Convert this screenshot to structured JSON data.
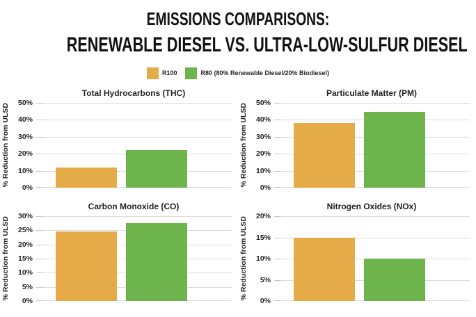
{
  "title": {
    "line1": "EMISSIONS COMPARISONS:",
    "line2": "RENEWABLE DIESEL VS. ULTRA-LOW-SULFUR DIESEL"
  },
  "legend": {
    "position": "top-center",
    "items": [
      {
        "label": "R100",
        "color": "#E6AB49"
      },
      {
        "label": "R80 (80% Renewable Diesel/20% Biodiesel)",
        "color": "#6CB44B"
      }
    ]
  },
  "colors": {
    "r100_orange": "#E6AB49",
    "r80_green": "#6CB44B",
    "gridline": "#DCDCDC",
    "text": "#231F20"
  },
  "chart_data": [
    {
      "type": "bar",
      "title": "Total Hydrocarbons (THC)",
      "xlabel": "",
      "ylabel": "% Reduction from ULSD",
      "ylim": [
        0,
        50
      ],
      "ytick_step": 10,
      "yticks": [
        "50%",
        "40%",
        "30%",
        "20%",
        "10%",
        "0%"
      ],
      "grid": true,
      "series": [
        {
          "name": "R100",
          "value": 12,
          "color": "#E6AB49"
        },
        {
          "name": "R80",
          "value": 22,
          "color": "#6CB44B"
        }
      ]
    },
    {
      "type": "bar",
      "title": "Particulate Matter (PM)",
      "xlabel": "",
      "ylabel": "% Reduction from ULSD",
      "ylim": [
        0,
        50
      ],
      "ytick_step": 10,
      "yticks": [
        "50%",
        "40%",
        "30%",
        "20%",
        "10%",
        "0%"
      ],
      "grid": true,
      "series": [
        {
          "name": "R100",
          "value": 38,
          "color": "#E6AB49"
        },
        {
          "name": "R80",
          "value": 44.5,
          "color": "#6CB44B"
        }
      ]
    },
    {
      "type": "bar",
      "title": "Carbon Monoxide (CO)",
      "xlabel": "",
      "ylabel": "% Reduction from ULSD",
      "ylim": [
        0,
        30
      ],
      "ytick_step": 5,
      "yticks": [
        "30%",
        "25%",
        "20%",
        "15%",
        "10%",
        "5%",
        "0%"
      ],
      "grid": true,
      "series": [
        {
          "name": "R100",
          "value": 24.5,
          "color": "#E6AB49"
        },
        {
          "name": "R80",
          "value": 27.5,
          "color": "#6CB44B"
        }
      ]
    },
    {
      "type": "bar",
      "title": "Nitrogen Oxides (NOx)",
      "xlabel": "",
      "ylabel": "% Reduction from ULSD",
      "ylim": [
        0,
        20
      ],
      "ytick_step": 5,
      "yticks": [
        "20%",
        "15%",
        "10%",
        "5%",
        "0%"
      ],
      "grid": true,
      "series": [
        {
          "name": "R100",
          "value": 15,
          "color": "#E6AB49"
        },
        {
          "name": "R80",
          "value": 10,
          "color": "#6CB44B"
        }
      ]
    }
  ]
}
